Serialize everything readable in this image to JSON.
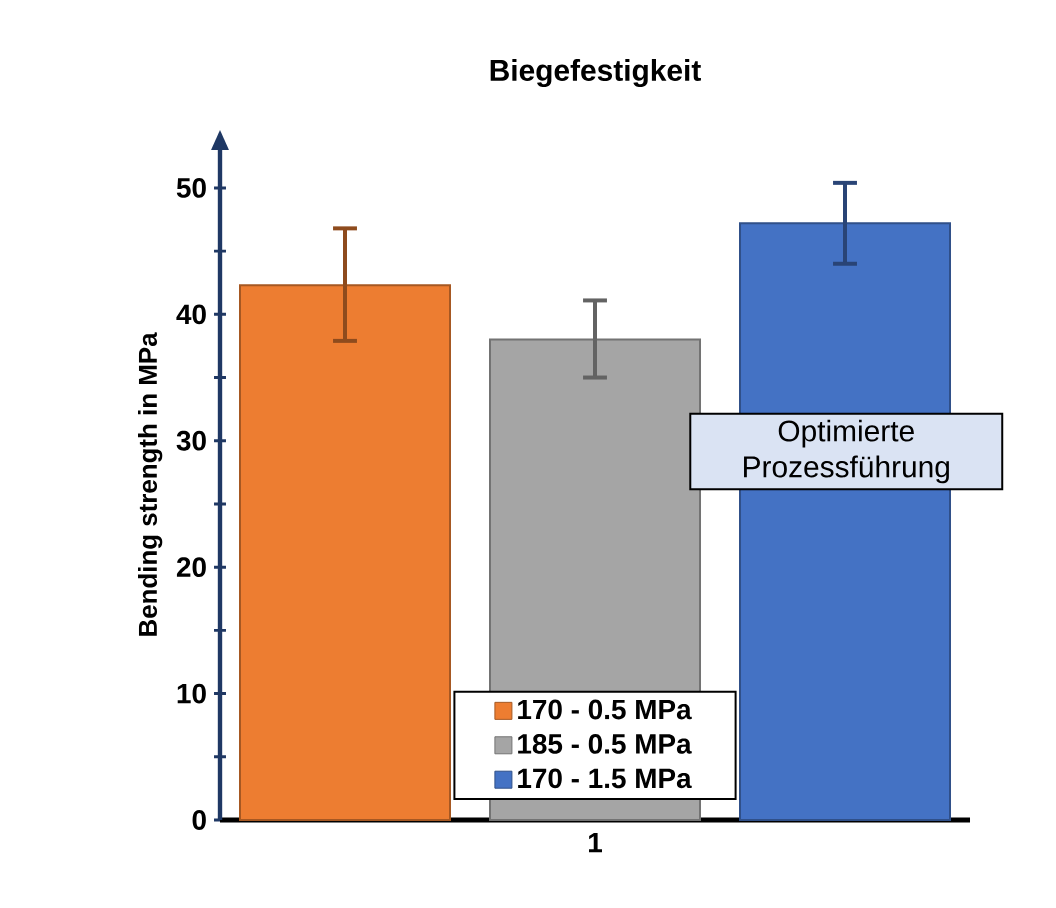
{
  "chart_data": {
    "type": "bar",
    "title": "Biegefestigkeit",
    "ylabel": "Bending strength in MPa",
    "categories": [
      "1"
    ],
    "series": [
      {
        "name": "170 - 0.5 MPa",
        "color": "#ed7d31",
        "values": [
          42.3
        ],
        "errors": [
          [
            37.9,
            46.8
          ]
        ]
      },
      {
        "name": "185 - 0.5 MPa",
        "color": "#a5a5a5",
        "values": [
          38.0
        ],
        "errors": [
          [
            35.0,
            41.1
          ]
        ]
      },
      {
        "name": "170 - 1.5 MPa",
        "color": "#4472c4",
        "values": [
          47.2
        ],
        "errors": [
          [
            44.0,
            50.4
          ]
        ]
      }
    ],
    "ylim": [
      0,
      53
    ],
    "yticks": [
      0,
      {
        "value": 5,
        "label": null
      },
      10,
      {
        "value": 15,
        "label": null
      },
      20,
      {
        "value": 25,
        "label": null
      },
      30,
      {
        "value": 35,
        "label": null
      },
      40,
      {
        "value": 45,
        "label": null
      },
      50
    ],
    "legend": "bottom",
    "annotations": [
      "Optimierte Prozessführung"
    ]
  }
}
